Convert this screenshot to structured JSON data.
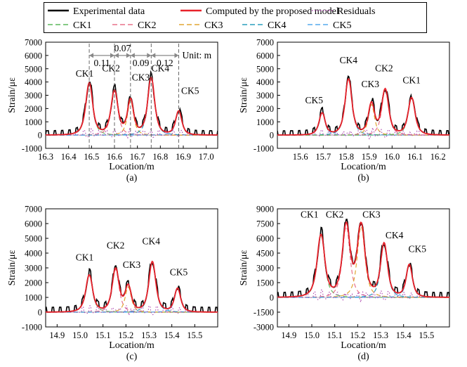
{
  "legend": {
    "items": [
      {
        "label": "Experimental data",
        "color": "#000000",
        "dash": "solid"
      },
      {
        "label": "Computed by the proposed model",
        "color": "#e8222b",
        "dash": "solid"
      },
      {
        "label": "Residuals",
        "color": "#b452b4",
        "dash": "dot"
      },
      {
        "label": "CK1",
        "color": "#5cb85c",
        "dash": "dash"
      },
      {
        "label": "CK2",
        "color": "#e8708a",
        "dash": "dash"
      },
      {
        "label": "CK3",
        "color": "#e0a532",
        "dash": "dash"
      },
      {
        "label": "CK4",
        "color": "#2a9fbe",
        "dash": "dash"
      },
      {
        "label": "CK5",
        "color": "#55aaee",
        "dash": "dash"
      }
    ]
  },
  "chart_data": [
    {
      "id": "a",
      "type": "line",
      "panel_label": "(a)",
      "xlabel": "Location/m",
      "ylabel": "Strain/με",
      "xlim": [
        16.3,
        17.05
      ],
      "ylim": [
        -1000,
        7000
      ],
      "xticks": [
        16.3,
        16.4,
        16.5,
        16.6,
        16.7,
        16.8,
        16.9,
        17.0
      ],
      "yticks": [
        -1000,
        0,
        1000,
        2000,
        3000,
        4000,
        5000,
        6000,
        7000
      ],
      "peaks": [
        {
          "name": "CK1",
          "x": 16.49,
          "height": 3900,
          "width": 0.045
        },
        {
          "name": "CK2",
          "x": 16.6,
          "height": 3300,
          "width": 0.045
        },
        {
          "name": "CK3",
          "x": 16.67,
          "height": 2600,
          "width": 0.04
        },
        {
          "name": "CK4",
          "x": 16.76,
          "height": 4300,
          "width": 0.045
        },
        {
          "name": "CK5",
          "x": 16.88,
          "height": 1800,
          "width": 0.04
        }
      ],
      "spacing": {
        "values": [
          "0.11",
          "0.07",
          "0.09",
          "0.12"
        ],
        "unit": "Unit: m",
        "guide_x": [
          16.49,
          16.6,
          16.67,
          16.76,
          16.88
        ]
      },
      "labels": [
        {
          "text": "CK1",
          "x": 16.47,
          "y": 4400
        },
        {
          "text": "CK2",
          "x": 16.585,
          "y": 4800
        },
        {
          "text": "CK3",
          "x": 16.715,
          "y": 4100
        },
        {
          "text": "CK4",
          "x": 16.8,
          "y": 4800
        },
        {
          "text": "CK5",
          "x": 16.93,
          "y": 3100
        }
      ]
    },
    {
      "id": "b",
      "type": "line",
      "panel_label": "(b)",
      "xlabel": "Location/m",
      "ylabel": "Strain/με",
      "xlim": [
        15.5,
        16.25
      ],
      "ylim": [
        -1000,
        7000
      ],
      "xticks": [
        15.6,
        15.7,
        15.8,
        15.9,
        16.0,
        16.1,
        16.2
      ],
      "yticks": [
        -1000,
        0,
        1000,
        2000,
        3000,
        4000,
        5000,
        6000,
        7000
      ],
      "peaks": [
        {
          "name": "CK5",
          "x": 15.695,
          "height": 1650,
          "width": 0.04
        },
        {
          "name": "CK4",
          "x": 15.81,
          "height": 4200,
          "width": 0.045
        },
        {
          "name": "CK3",
          "x": 15.91,
          "height": 2300,
          "width": 0.04
        },
        {
          "name": "CK2",
          "x": 15.97,
          "height": 3400,
          "width": 0.045
        },
        {
          "name": "CK1",
          "x": 16.085,
          "height": 2800,
          "width": 0.045
        }
      ],
      "labels": [
        {
          "text": "CK5",
          "x": 15.66,
          "y": 2400
        },
        {
          "text": "CK4",
          "x": 15.81,
          "y": 5400
        },
        {
          "text": "CK3",
          "x": 15.905,
          "y": 3600
        },
        {
          "text": "CK2",
          "x": 15.965,
          "y": 4800
        },
        {
          "text": "CK1",
          "x": 16.085,
          "y": 3900
        }
      ]
    },
    {
      "id": "c",
      "type": "line",
      "panel_label": "(c)",
      "xlabel": "Location/m",
      "ylabel": "Strain/με",
      "xlim": [
        14.85,
        15.6
      ],
      "ylim": [
        -1000,
        7000
      ],
      "xticks": [
        14.9,
        15.0,
        15.1,
        15.2,
        15.3,
        15.4,
        15.5
      ],
      "yticks": [
        -1000,
        0,
        1000,
        2000,
        3000,
        4000,
        5000,
        6000,
        7000
      ],
      "peaks": [
        {
          "name": "CK1",
          "x": 15.04,
          "height": 2500,
          "width": 0.045
        },
        {
          "name": "CK2",
          "x": 15.155,
          "height": 2900,
          "width": 0.045
        },
        {
          "name": "CK3",
          "x": 15.21,
          "height": 1700,
          "width": 0.04
        },
        {
          "name": "CK4",
          "x": 15.315,
          "height": 3400,
          "width": 0.045
        },
        {
          "name": "CK5",
          "x": 15.425,
          "height": 1600,
          "width": 0.04
        }
      ],
      "labels": [
        {
          "text": "CK1",
          "x": 15.02,
          "y": 3500
        },
        {
          "text": "CK2",
          "x": 15.155,
          "y": 4300
        },
        {
          "text": "CK3",
          "x": 15.225,
          "y": 3000
        },
        {
          "text": "CK4",
          "x": 15.31,
          "y": 4600
        },
        {
          "text": "CK5",
          "x": 15.43,
          "y": 2500
        }
      ]
    },
    {
      "id": "d",
      "type": "line",
      "panel_label": "(d)",
      "xlabel": "Location/m",
      "ylabel": "Strain/με",
      "xlim": [
        14.85,
        15.6
      ],
      "ylim": [
        -3000,
        9000
      ],
      "xticks": [
        14.9,
        15.0,
        15.1,
        15.2,
        15.3,
        15.4,
        15.5
      ],
      "yticks": [
        -3000,
        -1500,
        0,
        1500,
        3000,
        4500,
        6000,
        7500,
        9000
      ],
      "peaks": [
        {
          "name": "CK1",
          "x": 15.04,
          "height": 6300,
          "width": 0.05
        },
        {
          "name": "CK2",
          "x": 15.15,
          "height": 7200,
          "width": 0.05
        },
        {
          "name": "CK3",
          "x": 15.215,
          "height": 7200,
          "width": 0.05
        },
        {
          "name": "CK4",
          "x": 15.315,
          "height": 5400,
          "width": 0.045
        },
        {
          "name": "CK5",
          "x": 15.425,
          "height": 3300,
          "width": 0.04
        }
      ],
      "labels": [
        {
          "text": "CK1",
          "x": 14.99,
          "y": 8100
        },
        {
          "text": "CK2",
          "x": 15.1,
          "y": 8100
        },
        {
          "text": "CK3",
          "x": 15.26,
          "y": 8100
        },
        {
          "text": "CK4",
          "x": 15.36,
          "y": 6000
        },
        {
          "text": "CK5",
          "x": 15.46,
          "y": 4600
        }
      ]
    }
  ]
}
